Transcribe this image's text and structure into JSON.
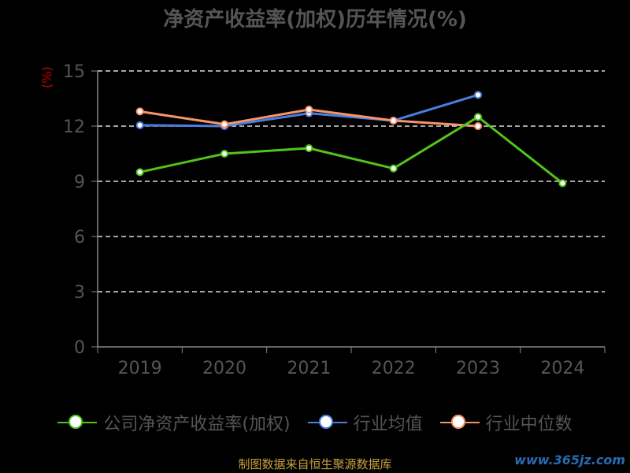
{
  "chart_data": {
    "type": "line",
    "title": "净资产收益率(加权)历年情况(%)",
    "ylabel": "(%)",
    "categories": [
      "2019",
      "2020",
      "2021",
      "2022",
      "2023",
      "2024"
    ],
    "ylim": [
      0,
      15
    ],
    "yticks": [
      0,
      3,
      6,
      9,
      12,
      15
    ],
    "grid": true,
    "legend_position": "bottom",
    "series": [
      {
        "name": "公司净资产收益率(加权)",
        "color": "#52c41a",
        "values": [
          9.5,
          10.5,
          10.8,
          9.7,
          12.5,
          8.9
        ]
      },
      {
        "name": "行业均值",
        "color": "#4a7fdf",
        "values": [
          12.05,
          12.0,
          12.7,
          12.3,
          13.7,
          null
        ]
      },
      {
        "name": "行业中位数",
        "color": "#f7956a",
        "values": [
          12.8,
          12.1,
          12.9,
          12.3,
          12.0,
          null
        ]
      }
    ]
  },
  "footer": "制图数据来自恒生聚源数据库",
  "watermark": "www.365jz.com"
}
